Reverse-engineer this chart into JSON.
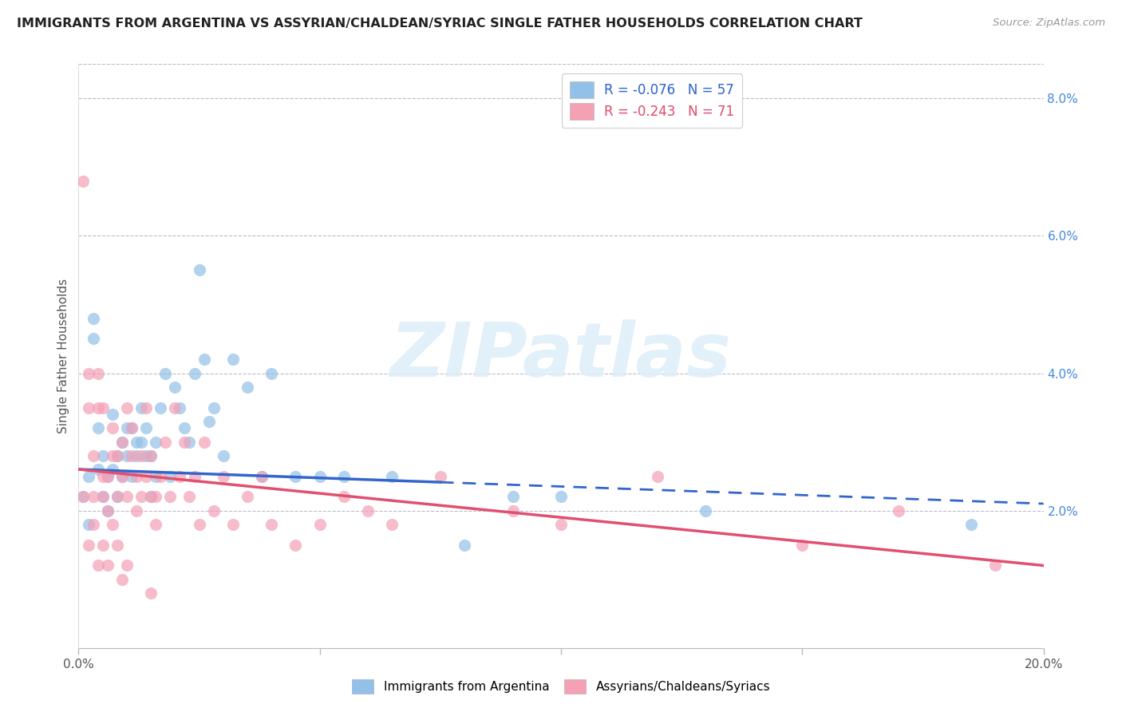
{
  "title": "IMMIGRANTS FROM ARGENTINA VS ASSYRIAN/CHALDEAN/SYRIAC SINGLE FATHER HOUSEHOLDS CORRELATION CHART",
  "source": "Source: ZipAtlas.com",
  "ylabel": "Single Father Households",
  "x_min": 0.0,
  "x_max": 0.2,
  "y_min": 0.0,
  "y_max": 0.085,
  "x_tick_positions": [
    0.0,
    0.05,
    0.1,
    0.15,
    0.2
  ],
  "x_tick_labels_edge": {
    "0.0": "0.0%",
    "0.2": "20.0%"
  },
  "y_ticks_right": [
    0.02,
    0.04,
    0.06,
    0.08
  ],
  "y_tick_labels_right": [
    "2.0%",
    "4.0%",
    "6.0%",
    "8.0%"
  ],
  "blue_color": "#92C0E8",
  "pink_color": "#F4A0B5",
  "blue_line_color": "#3366CC",
  "pink_line_color": "#E05070",
  "legend_blue_label": "R = -0.076   N = 57",
  "legend_pink_label": "R = -0.243   N = 71",
  "legend1": "Immigrants from Argentina",
  "legend2": "Assyrians/Chaldeans/Syriacs",
  "watermark": "ZIPatlas",
  "blue_line_solid_end": 0.075,
  "blue_line_x0": 0.0,
  "blue_line_x1": 0.2,
  "blue_line_y0": 0.026,
  "blue_line_y1": 0.021,
  "pink_line_x0": 0.0,
  "pink_line_x1": 0.2,
  "pink_line_y0": 0.026,
  "pink_line_y1": 0.012,
  "blue_scatter_x": [
    0.001,
    0.002,
    0.002,
    0.003,
    0.003,
    0.004,
    0.004,
    0.005,
    0.005,
    0.006,
    0.006,
    0.007,
    0.007,
    0.008,
    0.008,
    0.009,
    0.009,
    0.01,
    0.01,
    0.011,
    0.011,
    0.012,
    0.012,
    0.013,
    0.013,
    0.014,
    0.014,
    0.015,
    0.015,
    0.016,
    0.016,
    0.017,
    0.018,
    0.019,
    0.02,
    0.021,
    0.022,
    0.023,
    0.024,
    0.025,
    0.026,
    0.027,
    0.028,
    0.03,
    0.032,
    0.035,
    0.038,
    0.04,
    0.045,
    0.05,
    0.055,
    0.065,
    0.08,
    0.09,
    0.1,
    0.13,
    0.185
  ],
  "blue_scatter_y": [
    0.022,
    0.018,
    0.025,
    0.048,
    0.045,
    0.026,
    0.032,
    0.022,
    0.028,
    0.02,
    0.025,
    0.026,
    0.034,
    0.022,
    0.028,
    0.025,
    0.03,
    0.028,
    0.032,
    0.025,
    0.032,
    0.028,
    0.03,
    0.03,
    0.035,
    0.028,
    0.032,
    0.022,
    0.028,
    0.03,
    0.025,
    0.035,
    0.04,
    0.025,
    0.038,
    0.035,
    0.032,
    0.03,
    0.04,
    0.055,
    0.042,
    0.033,
    0.035,
    0.028,
    0.042,
    0.038,
    0.025,
    0.04,
    0.025,
    0.025,
    0.025,
    0.025,
    0.015,
    0.022,
    0.022,
    0.02,
    0.018
  ],
  "pink_scatter_x": [
    0.001,
    0.001,
    0.002,
    0.002,
    0.003,
    0.003,
    0.004,
    0.004,
    0.005,
    0.005,
    0.005,
    0.006,
    0.006,
    0.007,
    0.007,
    0.008,
    0.008,
    0.009,
    0.009,
    0.01,
    0.01,
    0.011,
    0.011,
    0.012,
    0.012,
    0.013,
    0.013,
    0.014,
    0.014,
    0.015,
    0.015,
    0.016,
    0.016,
    0.017,
    0.018,
    0.019,
    0.02,
    0.021,
    0.022,
    0.023,
    0.024,
    0.025,
    0.026,
    0.028,
    0.03,
    0.032,
    0.035,
    0.038,
    0.04,
    0.045,
    0.05,
    0.055,
    0.06,
    0.065,
    0.075,
    0.09,
    0.1,
    0.12,
    0.15,
    0.17,
    0.19,
    0.002,
    0.003,
    0.004,
    0.005,
    0.006,
    0.007,
    0.008,
    0.009,
    0.01,
    0.015
  ],
  "pink_scatter_y": [
    0.068,
    0.022,
    0.035,
    0.04,
    0.022,
    0.028,
    0.035,
    0.04,
    0.025,
    0.035,
    0.022,
    0.02,
    0.025,
    0.028,
    0.032,
    0.022,
    0.028,
    0.025,
    0.03,
    0.022,
    0.035,
    0.028,
    0.032,
    0.02,
    0.025,
    0.022,
    0.028,
    0.025,
    0.035,
    0.022,
    0.028,
    0.018,
    0.022,
    0.025,
    0.03,
    0.022,
    0.035,
    0.025,
    0.03,
    0.022,
    0.025,
    0.018,
    0.03,
    0.02,
    0.025,
    0.018,
    0.022,
    0.025,
    0.018,
    0.015,
    0.018,
    0.022,
    0.02,
    0.018,
    0.025,
    0.02,
    0.018,
    0.025,
    0.015,
    0.02,
    0.012,
    0.015,
    0.018,
    0.012,
    0.015,
    0.012,
    0.018,
    0.015,
    0.01,
    0.012,
    0.008
  ]
}
